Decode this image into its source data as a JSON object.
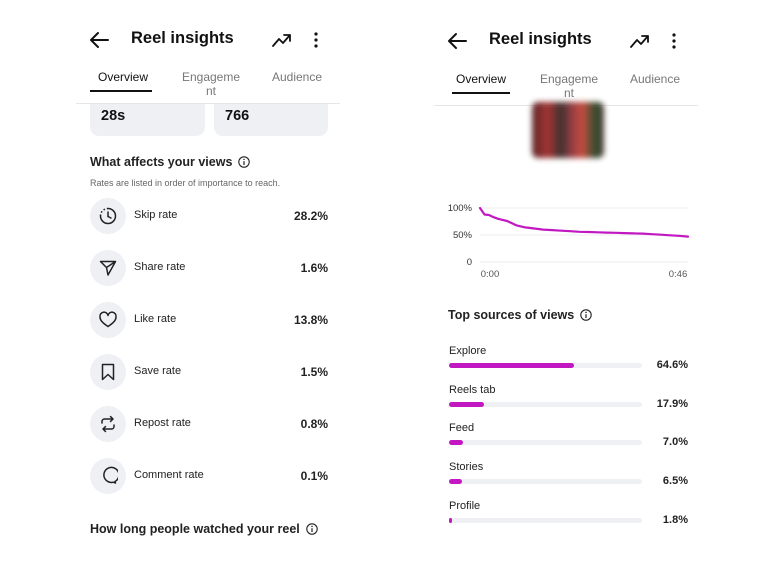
{
  "colors": {
    "accent": "#c218c2",
    "card_bg": "#eff0f4",
    "text": "#111111"
  },
  "left_screen": {
    "header": {
      "title": "Reel insights",
      "back_icon": "arrow-left-icon",
      "trend_icon": "trending-up-icon",
      "more_icon": "more-vertical-icon"
    },
    "tabs": [
      {
        "label": "Overview",
        "active": true
      },
      {
        "label": "Engageme\nnt",
        "active": false
      },
      {
        "label": "Audience",
        "active": false
      }
    ],
    "stat_cards": [
      {
        "value": "28s"
      },
      {
        "value": "766"
      }
    ],
    "affects": {
      "title": "What affects your views",
      "subtitle": "Rates are listed in order of importance to reach.",
      "metrics": [
        {
          "icon": "skip-clock-icon",
          "label": "Skip rate",
          "value": "28.2%"
        },
        {
          "icon": "share-send-icon",
          "label": "Share rate",
          "value": "1.6%"
        },
        {
          "icon": "heart-icon",
          "label": "Like rate",
          "value": "13.8%"
        },
        {
          "icon": "bookmark-icon",
          "label": "Save rate",
          "value": "1.5%"
        },
        {
          "icon": "repost-icon",
          "label": "Repost rate",
          "value": "0.8%"
        },
        {
          "icon": "comment-bubble-icon",
          "label": "Comment rate",
          "value": "0.1%"
        }
      ]
    },
    "watch_title": "How long people watched your reel"
  },
  "right_screen": {
    "header": {
      "title": "Reel insights"
    },
    "tabs": [
      {
        "label": "Overview",
        "active": true
      },
      {
        "label": "Engageme\nnt",
        "active": false
      },
      {
        "label": "Audience",
        "active": false
      }
    ],
    "chart_data": {
      "type": "line",
      "x": [
        0,
        1,
        2,
        3,
        4,
        5,
        6,
        7,
        8,
        10,
        12,
        14,
        16,
        18,
        20,
        22,
        24,
        26,
        28,
        30,
        32,
        34,
        36,
        38,
        40,
        42,
        44,
        46
      ],
      "y": [
        100,
        88,
        87,
        83,
        80,
        78,
        76,
        72,
        68,
        64,
        62,
        60,
        59,
        58,
        57,
        56,
        55.5,
        55,
        54.5,
        54,
        53.5,
        53,
        52.5,
        51.5,
        50.5,
        49.5,
        48.5,
        47
      ],
      "ylim": [
        0,
        100
      ],
      "xlim": [
        0,
        46
      ],
      "ytick_labels": [
        "100%",
        "50%",
        "0"
      ],
      "xtick_labels": [
        "0:00",
        "0:46"
      ]
    },
    "sources": {
      "title": "Top sources of views",
      "items": [
        {
          "label": "Explore",
          "value": "64.6%",
          "pct": 64.6
        },
        {
          "label": "Reels tab",
          "value": "17.9%",
          "pct": 17.9
        },
        {
          "label": "Feed",
          "value": "7.0%",
          "pct": 7.0
        },
        {
          "label": "Stories",
          "value": "6.5%",
          "pct": 6.5
        },
        {
          "label": "Profile",
          "value": "1.8%",
          "pct": 1.8
        }
      ]
    }
  }
}
